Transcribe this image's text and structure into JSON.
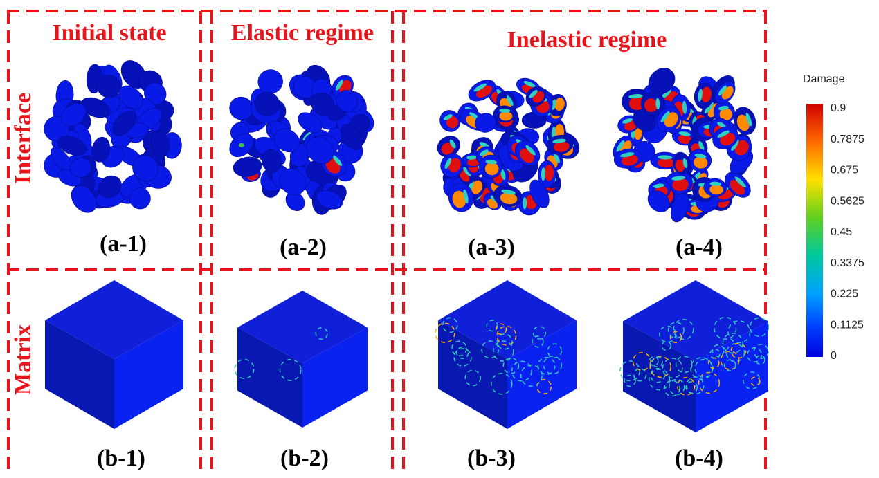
{
  "columns": [
    "Initial state",
    "Elastic regime",
    "Inelastic regime"
  ],
  "rows": [
    "Interface",
    "Matrix"
  ],
  "panels": [
    "(a-1)",
    "(a-2)",
    "(a-3)",
    "(a-4)",
    "(b-1)",
    "(b-2)",
    "(b-3)",
    "(b-4)"
  ],
  "colorbar": {
    "title": "Damage",
    "ticks": [
      "0.9",
      "0.7875",
      "0.675",
      "0.5625",
      "0.45",
      "0.3375",
      "0.225",
      "0.1125",
      "0"
    ]
  }
}
